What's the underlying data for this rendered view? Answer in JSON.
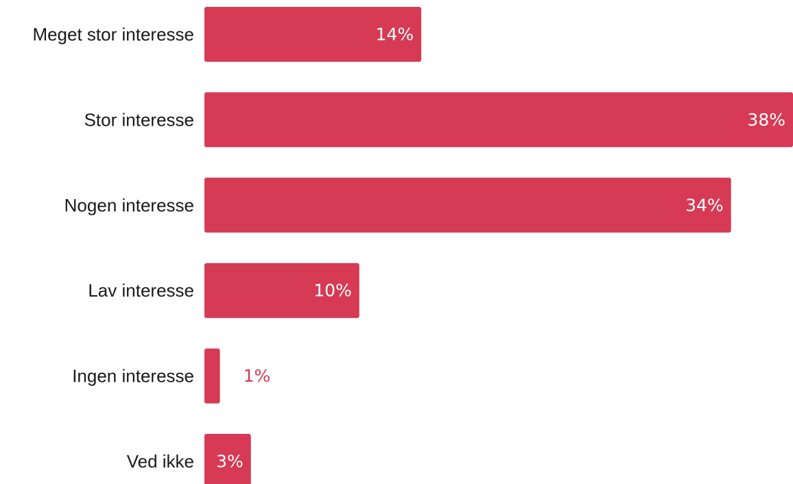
{
  "chart_data": {
    "type": "bar",
    "orientation": "horizontal",
    "categories": [
      "Meget stor interesse",
      "Stor interesse",
      "Nogen interesse",
      "Lav interesse",
      "Ingen interesse",
      "Ved ikke"
    ],
    "values": [
      14,
      38,
      34,
      10,
      1,
      3
    ],
    "value_labels": [
      "14%",
      "38%",
      "34%",
      "10%",
      "1%",
      "3%"
    ],
    "unit": "%",
    "title": "",
    "xlabel": "",
    "ylabel": "",
    "xlim": [
      0,
      38
    ],
    "grid": false,
    "legend": "none",
    "colors": {
      "bar": "#d63a55",
      "label_inside": "#ffffff",
      "label_outside": "#d63a55",
      "category_text": "#1a1a1a"
    }
  }
}
